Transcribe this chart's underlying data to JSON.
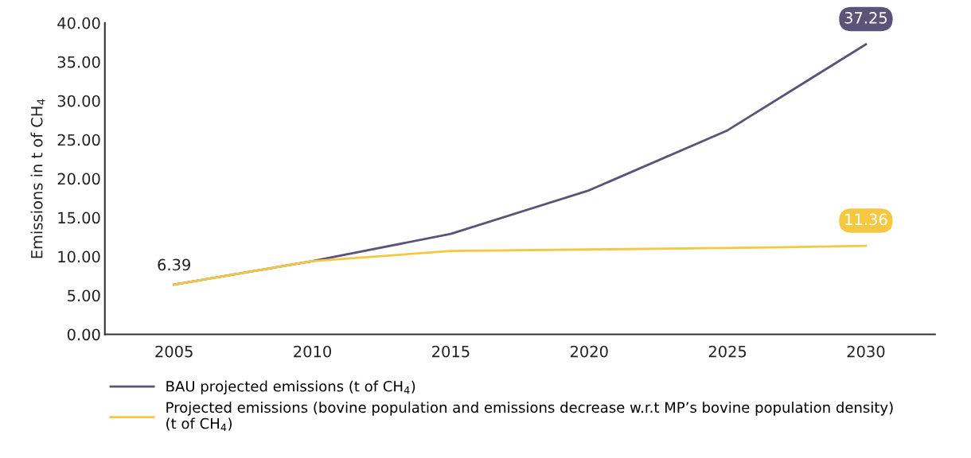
{
  "chart_data": {
    "type": "line",
    "ylabel": "Emissions in t of CH$_{4}$",
    "categories": [
      "2005",
      "2010",
      "2015",
      "2020",
      "2025",
      "2030"
    ],
    "series": [
      {
        "name": "BAU projected emissions (t of CH$_{4}$)",
        "color": "#5b5378",
        "values": [
          6.39,
          9.4,
          12.9,
          18.5,
          26.2,
          37.25
        ],
        "value_labels": [
          "6.39",
          null,
          null,
          null,
          null,
          "37.25"
        ]
      },
      {
        "name": "Projected emissions (bovine population and emissions decrease w.r.t MP’s bovine population density)\n(t of CH$_{4}$)",
        "color": "#f5c842",
        "values": [
          6.39,
          9.4,
          10.7,
          10.9,
          11.1,
          11.36
        ],
        "value_labels": [
          null,
          null,
          null,
          null,
          null,
          "11.36"
        ]
      }
    ],
    "ylim": [
      0,
      40
    ],
    "yticks": [
      {
        "value": 0,
        "label": "0.00"
      },
      {
        "value": 5,
        "label": "5.00"
      },
      {
        "value": 10,
        "label": "10.00"
      },
      {
        "value": 15,
        "label": "15.00"
      },
      {
        "value": 20,
        "label": "20.00"
      },
      {
        "value": 25,
        "label": "25.00"
      },
      {
        "value": 30,
        "label": "30.00"
      },
      {
        "value": 35,
        "label": "35.00"
      },
      {
        "value": 40,
        "label": "40.00"
      }
    ],
    "grid": false,
    "legend": "bottom",
    "marker": "none",
    "line_style": "solid"
  }
}
